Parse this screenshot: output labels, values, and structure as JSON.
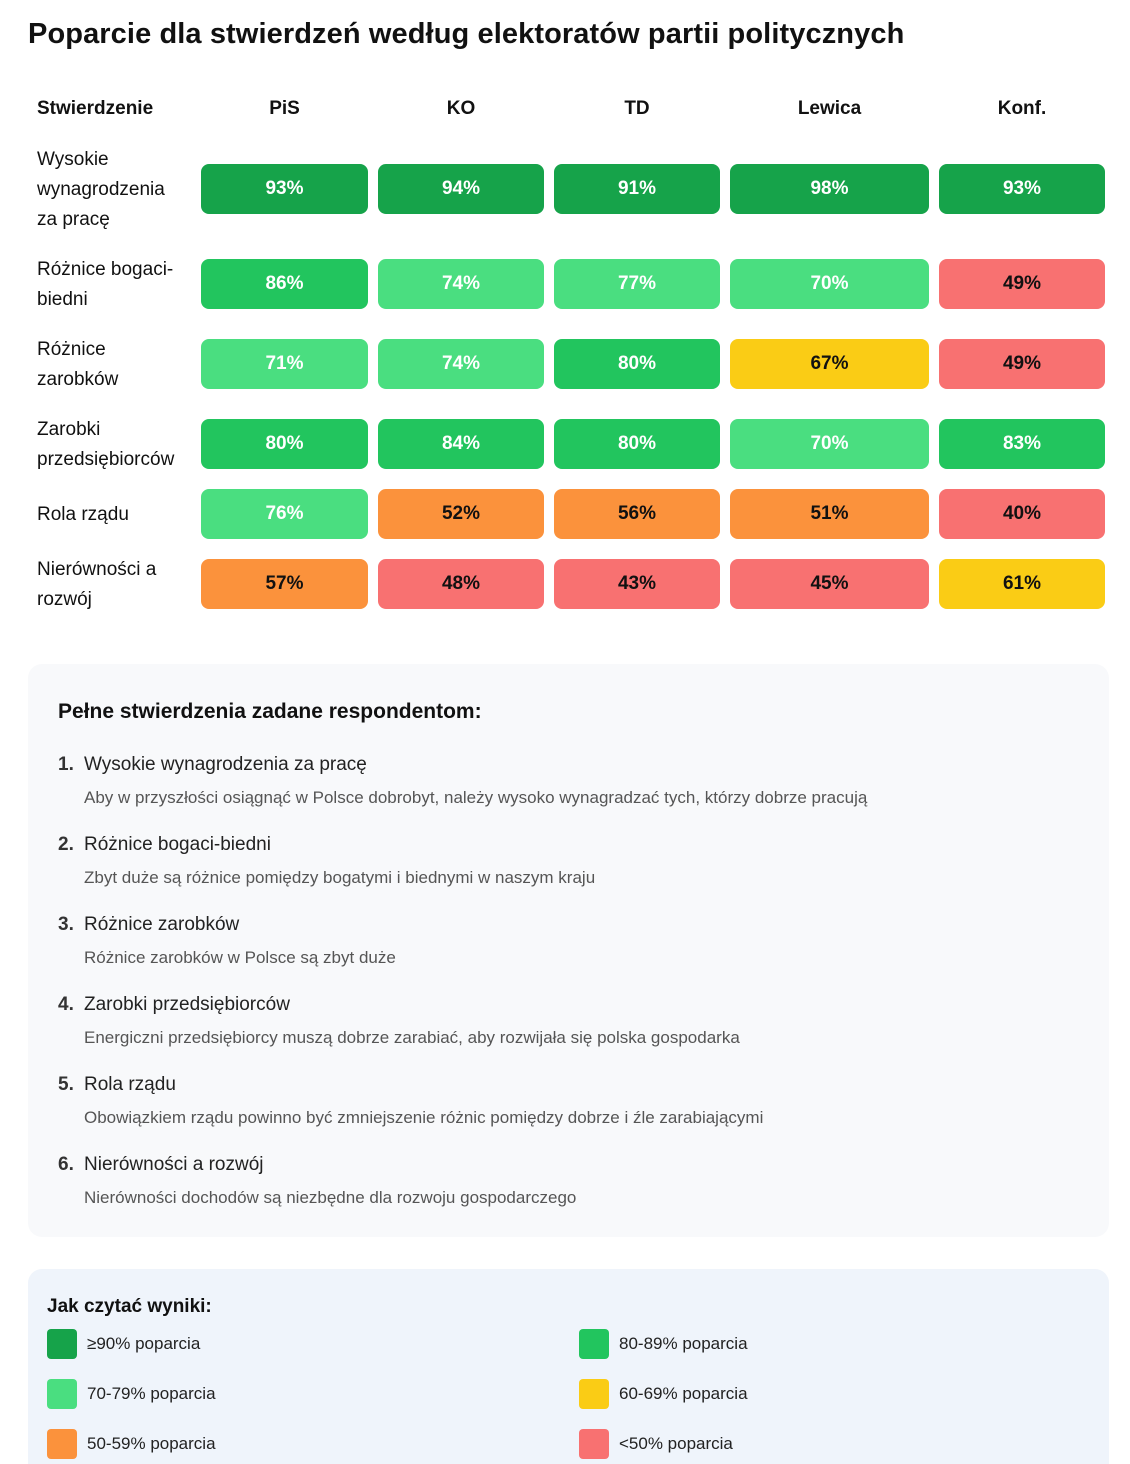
{
  "chart_data": {
    "type": "heatmap",
    "title": "Poparcie dla stwierdzeń według elektoratów partii politycznych",
    "row_header": "Stwierdzenie",
    "columns": [
      "PiS",
      "KO",
      "TD",
      "Lewica",
      "Konf."
    ],
    "rows": [
      {
        "label": "Wysokie wynagrodzenia za pracę",
        "values": [
          93,
          94,
          91,
          98,
          93
        ]
      },
      {
        "label": "Różnice bogaci-biedni",
        "values": [
          86,
          74,
          77,
          70,
          49
        ]
      },
      {
        "label": "Różnice zarobków",
        "values": [
          71,
          74,
          80,
          67,
          49
        ]
      },
      {
        "label": "Zarobki przedsiębiorców",
        "values": [
          80,
          84,
          80,
          70,
          83
        ]
      },
      {
        "label": "Rola rządu",
        "values": [
          76,
          52,
          56,
          51,
          40
        ]
      },
      {
        "label": "Nierówności a rozwój",
        "values": [
          57,
          48,
          43,
          45,
          61
        ]
      }
    ],
    "value_suffix": "%",
    "color_scale": [
      {
        "min": 90,
        "color": "#16a34a",
        "text_color": "#ffffff"
      },
      {
        "min": 80,
        "color": "#22c55e",
        "text_color": "#ffffff"
      },
      {
        "min": 70,
        "color": "#4ade80",
        "text_color": "#ffffff"
      },
      {
        "min": 60,
        "color": "#facc15",
        "text_color": "#111111"
      },
      {
        "min": 50,
        "color": "#fb923c",
        "text_color": "#111111"
      },
      {
        "min": 0,
        "color": "#f87171",
        "text_color": "#111111"
      }
    ]
  },
  "statements": {
    "title": "Pełne stwierdzenia zadane respondentom:",
    "items": [
      {
        "num": "1.",
        "short": "Wysokie wynagrodzenia za pracę",
        "full": "Aby w przyszłości osiągnąć w Polsce dobrobyt, należy wysoko wynagradzać tych, którzy dobrze pracują"
      },
      {
        "num": "2.",
        "short": "Różnice bogaci-biedni",
        "full": "Zbyt duże są różnice pomiędzy bogatymi i biednymi w naszym kraju"
      },
      {
        "num": "3.",
        "short": "Różnice zarobków",
        "full": "Różnice zarobków w Polsce są zbyt duże"
      },
      {
        "num": "4.",
        "short": "Zarobki przedsiębiorców",
        "full": "Energiczni przedsiębiorcy muszą dobrze zarabiać, aby rozwijała się polska gospodarka"
      },
      {
        "num": "5.",
        "short": "Rola rządu",
        "full": "Obowiązkiem rządu powinno być zmniejszenie różnic pomiędzy dobrze i źle zarabiającymi"
      },
      {
        "num": "6.",
        "short": "Nierówności a rozwój",
        "full": "Nierówności dochodów są niezbędne dla rozwoju gospodarczego"
      }
    ]
  },
  "legend": {
    "title": "Jak czytać wyniki:",
    "items": [
      {
        "label": "≥90% poparcia",
        "color": "#16a34a"
      },
      {
        "label": "80-89% poparcia",
        "color": "#22c55e"
      },
      {
        "label": "70-79% poparcia",
        "color": "#4ade80"
      },
      {
        "label": "60-69% poparcia",
        "color": "#facc15"
      },
      {
        "label": "50-59% poparcia",
        "color": "#fb923c"
      },
      {
        "label": "<50% poparcia",
        "color": "#f87171"
      }
    ]
  }
}
